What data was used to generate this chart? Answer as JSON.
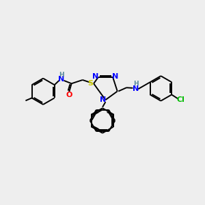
{
  "bg_color": "#eeeeee",
  "bond_color": "#000000",
  "atom_colors": {
    "N": "#0000ff",
    "O": "#ff0000",
    "S": "#cccc00",
    "Cl": "#00bb00",
    "H": "#558899",
    "C": "#000000"
  },
  "figsize": [
    3.0,
    3.0
  ],
  "dpi": 100
}
